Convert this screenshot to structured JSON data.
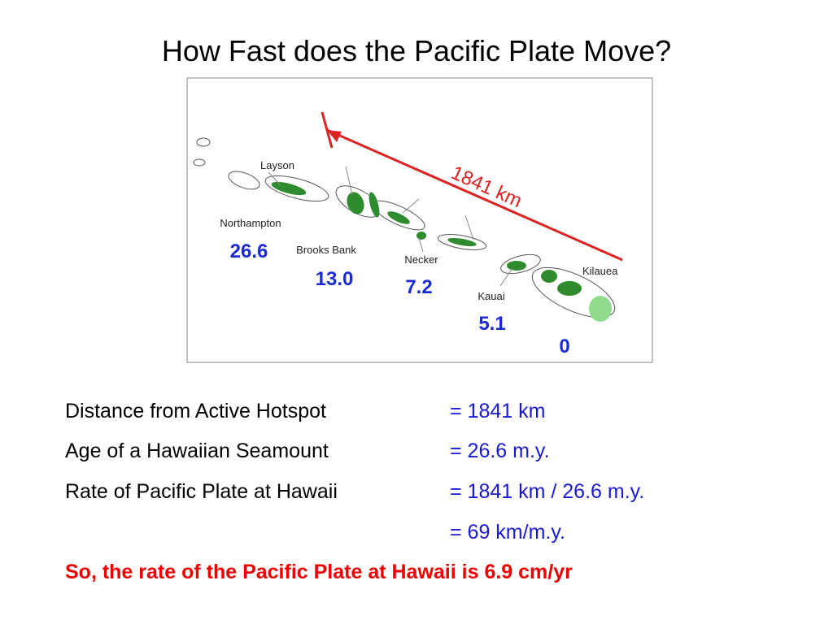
{
  "title": "How Fast does the Pacific Plate Move?",
  "map": {
    "distance": "1841 km",
    "islands": [
      {
        "name": "Layson"
      },
      {
        "name": "Northampton",
        "age": "26.6"
      },
      {
        "name": "Brooks Bank",
        "age": "13.0"
      },
      {
        "name": "Necker",
        "age": "7.2"
      },
      {
        "name": "Kauai",
        "age": "5.1"
      },
      {
        "name": "Kilauea",
        "age": "0"
      }
    ]
  },
  "rows": [
    {
      "label": "Distance from Active Hotspot",
      "value": "= 1841 km"
    },
    {
      "label": "Age of a Hawaiian Seamount",
      "value": "= 26.6 m.y."
    },
    {
      "label": "Rate of Pacific Plate at Hawaii",
      "value": "= 1841 km / 26.6 m.y."
    },
    {
      "value": "= 69 km/m.y."
    }
  ],
  "conclusion": "So, the rate of the Pacific Plate at Hawaii is 6.9 cm/yr"
}
